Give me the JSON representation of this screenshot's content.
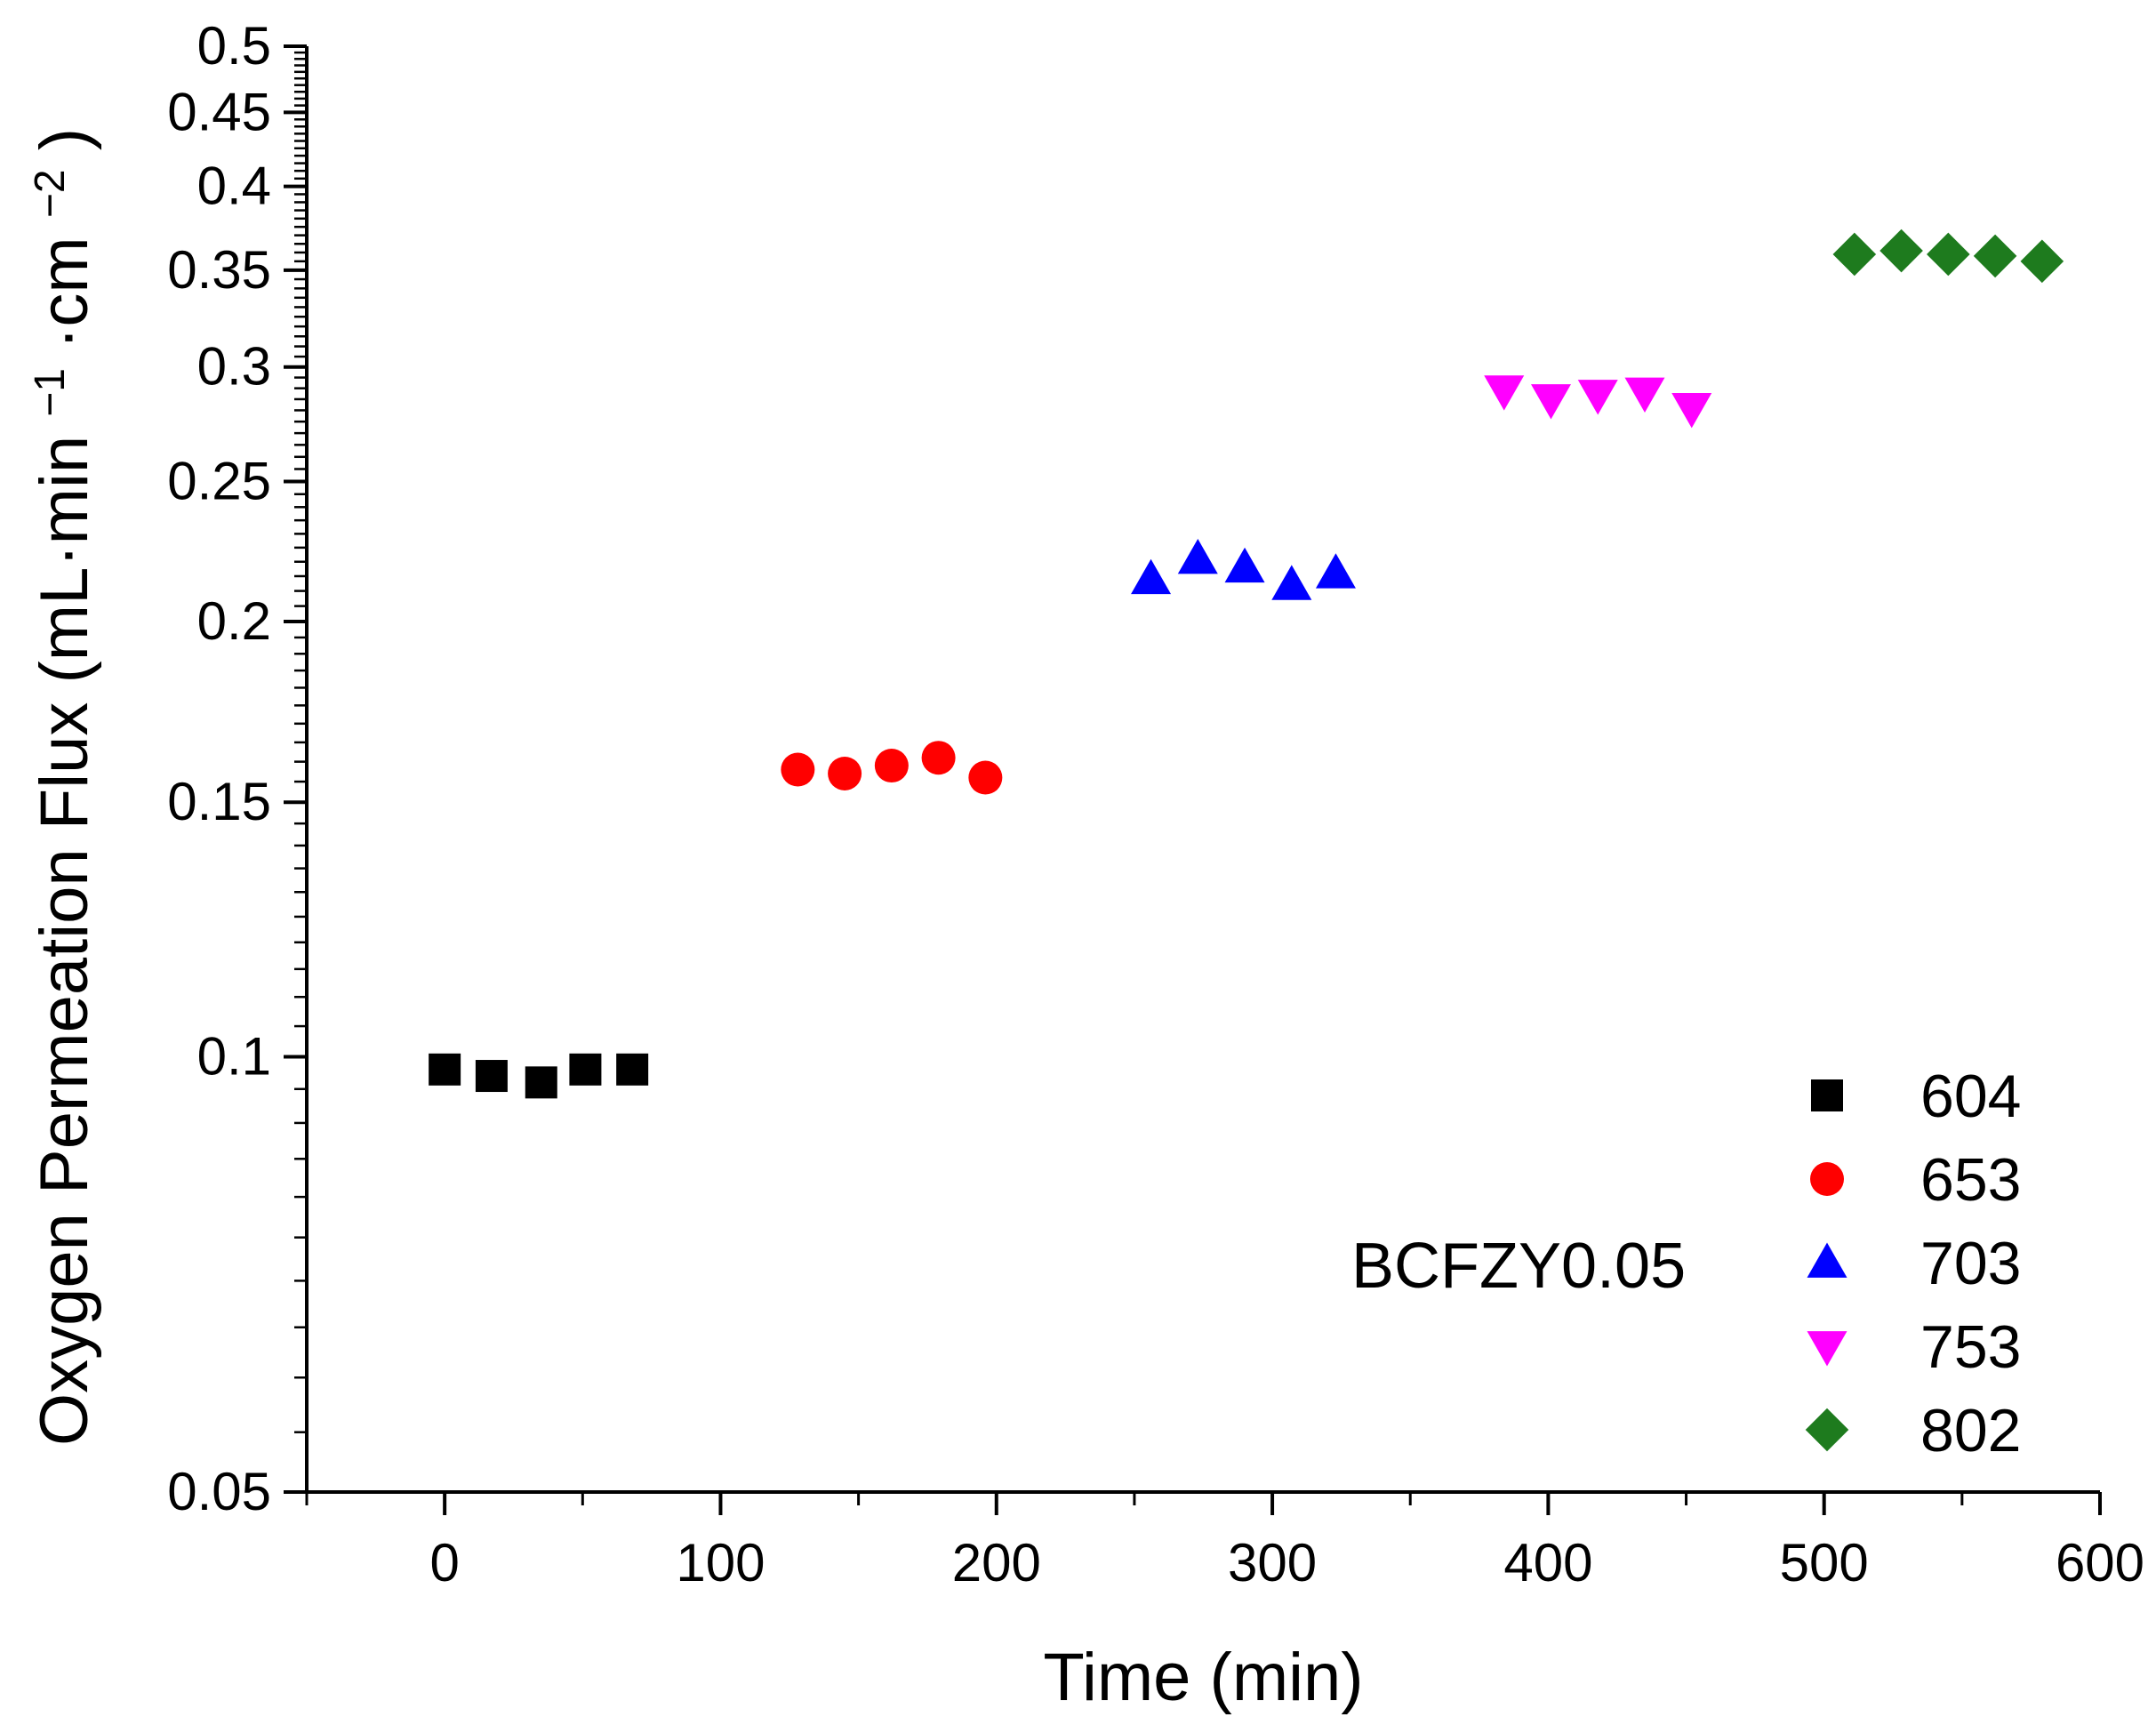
{
  "chart_data": {
    "type": "scatter",
    "title": "",
    "xlabel": "Time (min)",
    "ylabel_parts": {
      "pre": "Oxygen Permeation Flux (mL·min",
      "sup1": "−1",
      "mid": "·cm",
      "sup2": "−2",
      "post": ")"
    },
    "xlim": [
      -50,
      600
    ],
    "ylim": [
      0.05,
      0.5
    ],
    "yscale": "log",
    "x_ticks": [
      0,
      100,
      200,
      300,
      400,
      500,
      600
    ],
    "x_tick_labels": [
      "0",
      "100",
      "200",
      "300",
      "400",
      "500",
      "600"
    ],
    "y_ticks": [
      0.05,
      0.1,
      0.15,
      0.2,
      0.25,
      0.3,
      0.35,
      0.4,
      0.45,
      0.5
    ],
    "y_tick_labels": [
      "0.05",
      "0.1",
      "0.15",
      "0.2",
      "0.25",
      "0.3",
      "0.35",
      "0.4",
      "0.45",
      "0.5"
    ],
    "legend_placement": "bottom-right",
    "annotation": "BCFZY0.05",
    "series": [
      {
        "name": "604",
        "marker": "square",
        "color": "#000000",
        "x": [
          0,
          17,
          35,
          51,
          68
        ],
        "y": [
          0.098,
          0.097,
          0.096,
          0.098,
          0.098
        ]
      },
      {
        "name": "653",
        "marker": "circle",
        "color": "#ff0000",
        "x": [
          128,
          145,
          162,
          179,
          196
        ],
        "y": [
          0.158,
          0.157,
          0.159,
          0.161,
          0.156
        ]
      },
      {
        "name": "703",
        "marker": "triangle-up",
        "color": "#0000ff",
        "x": [
          256,
          273,
          290,
          307,
          323
        ],
        "y": [
          0.214,
          0.221,
          0.218,
          0.212,
          0.216
        ]
      },
      {
        "name": "753",
        "marker": "triangle-down",
        "color": "#ff00ff",
        "x": [
          384,
          401,
          418,
          435,
          452
        ],
        "y": [
          0.289,
          0.285,
          0.287,
          0.288,
          0.281
        ]
      },
      {
        "name": "802",
        "marker": "diamond",
        "color": "#1e7b1e",
        "x": [
          511,
          528,
          545,
          562,
          579
        ],
        "y": [
          0.359,
          0.361,
          0.359,
          0.358,
          0.355
        ]
      }
    ]
  }
}
